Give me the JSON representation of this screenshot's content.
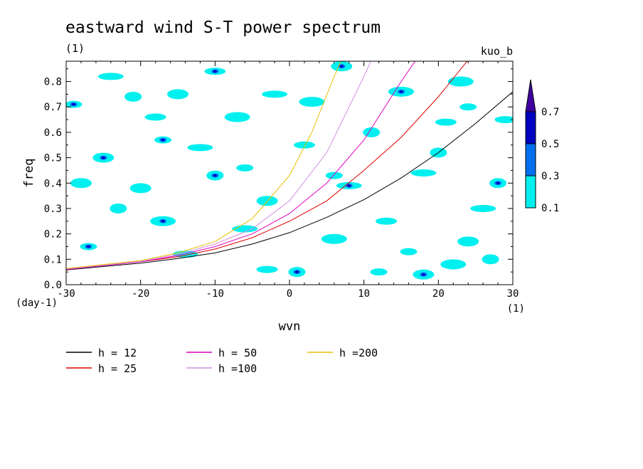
{
  "chart_data": {
    "type": "heatmap",
    "title": "eastward wind S-T power spectrum",
    "subtitle": "(1)",
    "top_right_label": "kuo_b",
    "xlabel": "wvn",
    "ylabel": "freq",
    "x_unit_label": "(1)",
    "y_unit_label": "(day-1)",
    "xlim": [
      -30,
      30
    ],
    "ylim": [
      0,
      0.88
    ],
    "x_ticks": [
      -30,
      -20,
      -10,
      0,
      10,
      20,
      30
    ],
    "x_tick_labels": [
      "-30",
      "-20",
      "-10",
      "0",
      "10",
      "20",
      "30"
    ],
    "y_ticks": [
      0,
      0.1,
      0.2,
      0.3,
      0.4,
      0.5,
      0.6,
      0.7,
      0.8
    ],
    "y_tick_labels": [
      "0.0",
      "0.1",
      "0.2",
      "0.3",
      "0.4",
      "0.5",
      "0.6",
      "0.7",
      "0.8"
    ],
    "colorbar": {
      "levels": [
        0.1,
        0.3,
        0.5,
        0.7
      ],
      "labels": [
        "0.1",
        "0.3",
        "0.5",
        "0.7"
      ],
      "colors": [
        "#00f0f0",
        "#0070f0",
        "#0000c0",
        "#4000a0"
      ]
    },
    "shaded_patches": [
      {
        "x": -29,
        "y": 0.71,
        "level": 2
      },
      {
        "x": -25,
        "y": 0.5,
        "level": 2
      },
      {
        "x": -24,
        "y": 0.82,
        "level": 1
      },
      {
        "x": -21,
        "y": 0.74,
        "level": 1
      },
      {
        "x": -18,
        "y": 0.66,
        "level": 1
      },
      {
        "x": -17,
        "y": 0.25,
        "level": 2
      },
      {
        "x": -17,
        "y": 0.57,
        "level": 2
      },
      {
        "x": -15,
        "y": 0.75,
        "level": 1
      },
      {
        "x": -12,
        "y": 0.54,
        "level": 1
      },
      {
        "x": -10,
        "y": 0.43,
        "level": 2
      },
      {
        "x": -10,
        "y": 0.84,
        "level": 2
      },
      {
        "x": -7,
        "y": 0.66,
        "level": 1
      },
      {
        "x": -6,
        "y": 0.46,
        "level": 1
      },
      {
        "x": -3,
        "y": 0.33,
        "level": 1
      },
      {
        "x": -2,
        "y": 0.75,
        "level": 1
      },
      {
        "x": 1,
        "y": 0.05,
        "level": 2
      },
      {
        "x": 2,
        "y": 0.55,
        "level": 1
      },
      {
        "x": 3,
        "y": 0.72,
        "level": 1
      },
      {
        "x": 6,
        "y": 0.43,
        "level": 1
      },
      {
        "x": 7,
        "y": 0.86,
        "level": 2
      },
      {
        "x": 8,
        "y": 0.39,
        "level": 2
      },
      {
        "x": 11,
        "y": 0.6,
        "level": 1
      },
      {
        "x": 13,
        "y": 0.25,
        "level": 1
      },
      {
        "x": 15,
        "y": 0.76,
        "level": 2
      },
      {
        "x": 16,
        "y": 0.13,
        "level": 1
      },
      {
        "x": 18,
        "y": 0.04,
        "level": 2
      },
      {
        "x": 18,
        "y": 0.44,
        "level": 1
      },
      {
        "x": 20,
        "y": 0.52,
        "level": 1
      },
      {
        "x": 21,
        "y": 0.64,
        "level": 1
      },
      {
        "x": 22,
        "y": 0.08,
        "level": 1
      },
      {
        "x": 24,
        "y": 0.7,
        "level": 1
      },
      {
        "x": 24,
        "y": 0.17,
        "level": 1
      },
      {
        "x": 26,
        "y": 0.3,
        "level": 1
      },
      {
        "x": 28,
        "y": 0.4,
        "level": 2
      },
      {
        "x": 29,
        "y": 0.65,
        "level": 1
      },
      {
        "x": 23,
        "y": 0.8,
        "level": 1
      },
      {
        "x": -27,
        "y": 0.15,
        "level": 2
      },
      {
        "x": -20,
        "y": 0.38,
        "level": 1
      },
      {
        "x": -14,
        "y": 0.12,
        "level": 1
      },
      {
        "x": -23,
        "y": 0.3,
        "level": 1
      },
      {
        "x": -3,
        "y": 0.06,
        "level": 1
      },
      {
        "x": 6,
        "y": 0.18,
        "level": 1
      },
      {
        "x": 12,
        "y": 0.05,
        "level": 1
      },
      {
        "x": -28,
        "y": 0.4,
        "level": 1
      },
      {
        "x": -6,
        "y": 0.22,
        "level": 1
      },
      {
        "x": 27,
        "y": 0.1,
        "level": 1
      }
    ],
    "series": [
      {
        "name": "h = 12",
        "color": "#000000",
        "x": [
          -30,
          -20,
          -15,
          -10,
          -5,
          0,
          5,
          10,
          15,
          20,
          25,
          30
        ],
        "y": [
          0.058,
          0.085,
          0.103,
          0.125,
          0.16,
          0.205,
          0.265,
          0.335,
          0.42,
          0.52,
          0.635,
          0.76
        ]
      },
      {
        "name": "h = 25",
        "color": "#e00000",
        "x": [
          -30,
          -20,
          -15,
          -10,
          -5,
          0,
          5,
          10,
          15,
          20,
          24
        ],
        "y": [
          0.06,
          0.09,
          0.11,
          0.14,
          0.185,
          0.25,
          0.33,
          0.45,
          0.58,
          0.74,
          0.885
        ]
      },
      {
        "name": "h = 50",
        "color": "#e000c0",
        "x": [
          -30,
          -20,
          -15,
          -10,
          -5,
          0,
          5,
          10,
          15,
          17
        ],
        "y": [
          0.06,
          0.09,
          0.115,
          0.15,
          0.2,
          0.28,
          0.4,
          0.57,
          0.8,
          0.885
        ]
      },
      {
        "name": "h =100",
        "color": "#d090e0",
        "x": [
          -30,
          -20,
          -15,
          -10,
          -5,
          0,
          5,
          10,
          11
        ],
        "y": [
          0.062,
          0.092,
          0.12,
          0.16,
          0.22,
          0.33,
          0.52,
          0.82,
          0.885
        ]
      },
      {
        "name": "h =200",
        "color": "#e8c000",
        "x": [
          -30,
          -20,
          -15,
          -10,
          -5,
          0,
          3,
          6,
          7
        ],
        "y": [
          0.064,
          0.095,
          0.125,
          0.17,
          0.26,
          0.43,
          0.6,
          0.82,
          0.885
        ]
      }
    ]
  }
}
